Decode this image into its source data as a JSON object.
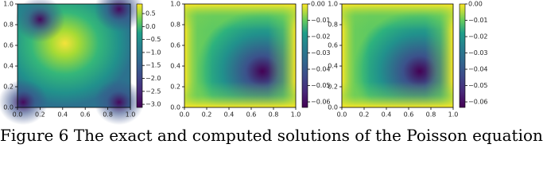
{
  "chart_data": [
    {
      "type": "heatmap",
      "style": "peak",
      "xlim": [
        0,
        1
      ],
      "ylim": [
        0,
        1
      ],
      "xticks": [
        {
          "value": 0,
          "label": "0.0"
        },
        {
          "value": 0.2,
          "label": "0.2"
        },
        {
          "value": 0.4,
          "label": "0.4"
        },
        {
          "value": 0.6,
          "label": "0.6"
        },
        {
          "value": 0.8,
          "label": "0.8"
        },
        {
          "value": 1,
          "label": "1.0"
        }
      ],
      "yticks": [
        {
          "value": 0,
          "label": "0.0"
        },
        {
          "value": 0.2,
          "label": "0.2"
        },
        {
          "value": 0.4,
          "label": "0.4"
        },
        {
          "value": 0.6,
          "label": "0.6"
        },
        {
          "value": 0.8,
          "label": "0.8"
        },
        {
          "value": 1,
          "label": "1.0"
        }
      ],
      "clim": [
        -3.12,
        0.87
      ],
      "cticks": [
        {
          "value": 0.5,
          "label": "0.5"
        },
        {
          "value": 0,
          "label": "0.0"
        },
        {
          "value": -0.5,
          "label": "−0.5"
        },
        {
          "value": -1,
          "label": "−1.0"
        },
        {
          "value": -1.5,
          "label": "−1.5"
        },
        {
          "value": -2,
          "label": "−2.0"
        },
        {
          "value": -2.5,
          "label": "−2.5"
        },
        {
          "value": -3,
          "label": "−3.0"
        }
      ]
    },
    {
      "type": "heatmap",
      "style": "well",
      "xlim": [
        0,
        1
      ],
      "ylim": [
        0,
        1
      ],
      "xticks": [
        {
          "value": 0,
          "label": "0.0"
        },
        {
          "value": 0.2,
          "label": "0.2"
        },
        {
          "value": 0.4,
          "label": "0.4"
        },
        {
          "value": 0.6,
          "label": "0.6"
        },
        {
          "value": 0.8,
          "label": "0.8"
        },
        {
          "value": 1,
          "label": "1.0"
        }
      ],
      "yticks": [
        {
          "value": 0,
          "label": "0.0"
        },
        {
          "value": 0.2,
          "label": "0.2"
        },
        {
          "value": 0.4,
          "label": "0.4"
        },
        {
          "value": 0.6,
          "label": "0.6"
        },
        {
          "value": 0.8,
          "label": "0.8"
        },
        {
          "value": 1,
          "label": "1.0"
        }
      ],
      "clim": [
        -0.0634,
        0
      ],
      "cticks": [
        {
          "value": 0,
          "label": "0.00"
        },
        {
          "value": -0.01,
          "label": "−0.01"
        },
        {
          "value": -0.02,
          "label": "−0.02"
        },
        {
          "value": -0.03,
          "label": "−0.03"
        },
        {
          "value": -0.04,
          "label": "−0.04"
        },
        {
          "value": -0.05,
          "label": "−0.05"
        },
        {
          "value": -0.06,
          "label": "−0.06"
        }
      ]
    },
    {
      "type": "heatmap",
      "style": "well",
      "xlim": [
        0,
        1
      ],
      "ylim": [
        0,
        1
      ],
      "xticks": [
        {
          "value": 0,
          "label": "0.0"
        },
        {
          "value": 0.2,
          "label": "0.2"
        },
        {
          "value": 0.4,
          "label": "0.4"
        },
        {
          "value": 0.6,
          "label": "0.6"
        },
        {
          "value": 0.8,
          "label": "0.8"
        },
        {
          "value": 1,
          "label": "1.0"
        }
      ],
      "yticks": [
        {
          "value": 0,
          "label": "0.0"
        },
        {
          "value": 0.2,
          "label": "0.2"
        },
        {
          "value": 0.4,
          "label": "0.4"
        },
        {
          "value": 0.6,
          "label": "0.6"
        },
        {
          "value": 0.8,
          "label": "0.8"
        },
        {
          "value": 1,
          "label": "1.0"
        }
      ],
      "clim": [
        -0.0634,
        0
      ],
      "cticks": [
        {
          "value": 0,
          "label": "0.00"
        },
        {
          "value": -0.01,
          "label": "−0.01"
        },
        {
          "value": -0.02,
          "label": "−0.02"
        },
        {
          "value": -0.03,
          "label": "−0.03"
        },
        {
          "value": -0.04,
          "label": "−0.04"
        },
        {
          "value": -0.05,
          "label": "−0.05"
        },
        {
          "value": -0.06,
          "label": "−0.06"
        }
      ]
    }
  ],
  "caption": "Figure 6 The exact and computed solutions of the Poisson equation"
}
